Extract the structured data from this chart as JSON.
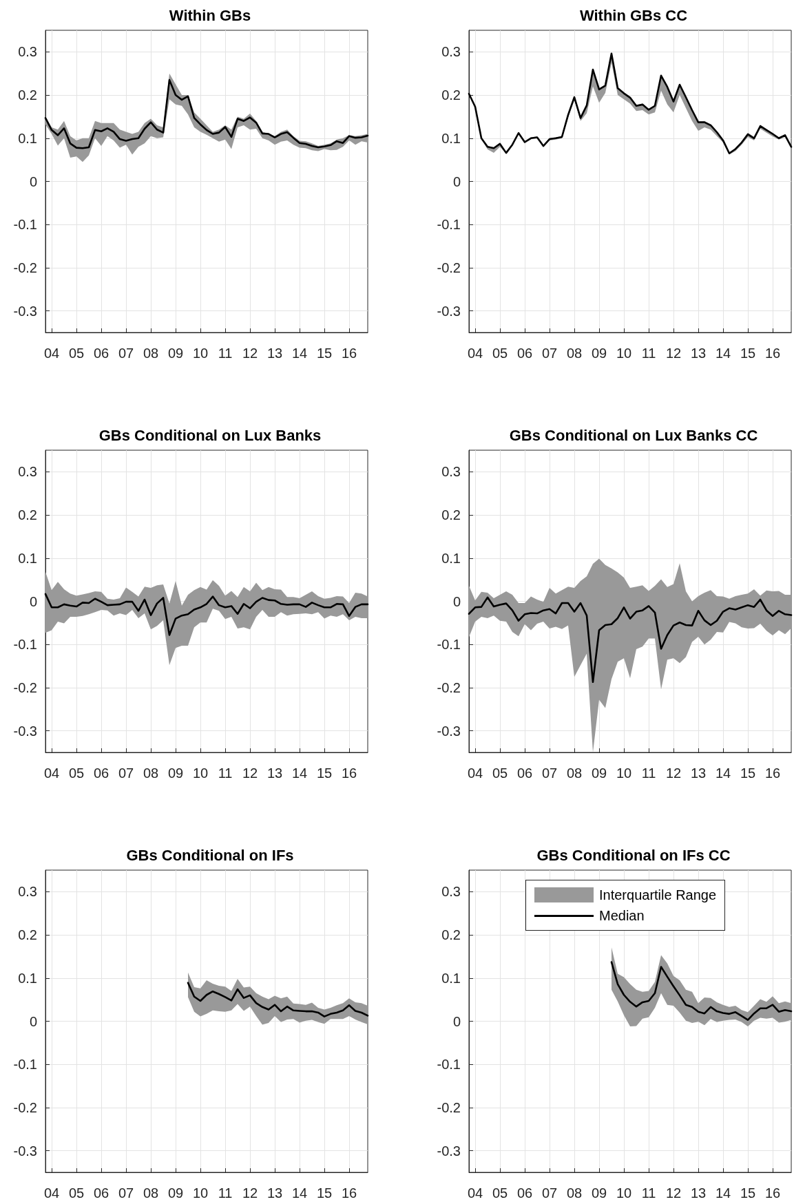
{
  "chart_data": [
    {
      "type": "line",
      "title": "Within GBs",
      "xlim": [
        2003.75,
        2016.75
      ],
      "ylim": [
        -0.35,
        0.35
      ],
      "xticks": [
        {
          "value": 2004,
          "label": "04"
        },
        {
          "value": 2005,
          "label": "05"
        },
        {
          "value": 2006,
          "label": "06"
        },
        {
          "value": 2007,
          "label": "07"
        },
        {
          "value": 2008,
          "label": "08"
        },
        {
          "value": 2009,
          "label": "09"
        },
        {
          "value": 2010,
          "label": "10"
        },
        {
          "value": 2011,
          "label": "11"
        },
        {
          "value": 2012,
          "label": "12"
        },
        {
          "value": 2013,
          "label": "13"
        },
        {
          "value": 2014,
          "label": "14"
        },
        {
          "value": 2015,
          "label": "15"
        },
        {
          "value": 2016,
          "label": "16"
        }
      ],
      "yticks": [
        -0.3,
        -0.2,
        -0.1,
        0,
        0.1,
        0.2,
        0.3
      ],
      "grid": true,
      "legend": false,
      "x": [
        2003.75,
        2004,
        2004.25,
        2004.5,
        2004.75,
        2005,
        2005.25,
        2005.5,
        2005.75,
        2006,
        2006.25,
        2006.5,
        2006.75,
        2007,
        2007.25,
        2007.5,
        2007.75,
        2008,
        2008.25,
        2008.5,
        2008.75,
        2009,
        2009.25,
        2009.5,
        2009.75,
        2010,
        2010.25,
        2010.5,
        2010.75,
        2011,
        2011.25,
        2011.5,
        2011.75,
        2012,
        2012.25,
        2012.5,
        2012.75,
        2013,
        2013.25,
        2013.5,
        2013.75,
        2014,
        2014.25,
        2014.5,
        2014.75,
        2015,
        2015.25,
        2015.5,
        2015.75,
        2016,
        2016.25,
        2016.5,
        2016.75
      ],
      "series": [
        {
          "color": "#000000",
          "values": [
            0.147,
            0.119,
            0.107,
            0.123,
            0.088,
            0.078,
            0.077,
            0.079,
            0.119,
            0.116,
            0.123,
            0.115,
            0.098,
            0.094,
            0.098,
            0.1,
            0.122,
            0.137,
            0.12,
            0.113,
            0.235,
            0.2,
            0.189,
            0.197,
            0.147,
            0.132,
            0.119,
            0.11,
            0.113,
            0.126,
            0.103,
            0.145,
            0.14,
            0.148,
            0.136,
            0.111,
            0.11,
            0.102,
            0.11,
            0.114,
            0.101,
            0.089,
            0.087,
            0.082,
            0.079,
            0.081,
            0.084,
            0.093,
            0.089,
            0.105,
            0.101,
            0.102,
            0.106
          ],
          "upper": [
            0.15,
            0.125,
            0.12,
            0.14,
            0.105,
            0.095,
            0.1,
            0.1,
            0.14,
            0.135,
            0.135,
            0.135,
            0.12,
            0.115,
            0.11,
            0.115,
            0.135,
            0.145,
            0.13,
            0.125,
            0.25,
            0.225,
            0.2,
            0.2,
            0.16,
            0.145,
            0.13,
            0.115,
            0.12,
            0.13,
            0.12,
            0.15,
            0.145,
            0.157,
            0.14,
            0.115,
            0.11,
            0.105,
            0.115,
            0.12,
            0.105,
            0.094,
            0.093,
            0.088,
            0.082,
            0.085,
            0.088,
            0.097,
            0.1,
            0.107,
            0.105,
            0.107,
            0.11
          ],
          "lower": [
            0.132,
            0.11,
            0.083,
            0.1,
            0.055,
            0.058,
            0.045,
            0.06,
            0.1,
            0.082,
            0.105,
            0.095,
            0.078,
            0.085,
            0.062,
            0.08,
            0.088,
            0.105,
            0.1,
            0.102,
            0.19,
            0.178,
            0.175,
            0.155,
            0.125,
            0.115,
            0.108,
            0.1,
            0.092,
            0.097,
            0.075,
            0.125,
            0.13,
            0.12,
            0.122,
            0.1,
            0.095,
            0.085,
            0.092,
            0.095,
            0.085,
            0.078,
            0.077,
            0.072,
            0.07,
            0.075,
            0.072,
            0.073,
            0.08,
            0.095,
            0.085,
            0.093,
            0.09
          ]
        }
      ]
    },
    {
      "type": "line",
      "title": "Within GBs CC",
      "xlim": [
        2003.75,
        2016.75
      ],
      "ylim": [
        -0.35,
        0.35
      ],
      "xticks": [
        {
          "value": 2004,
          "label": "04"
        },
        {
          "value": 2005,
          "label": "05"
        },
        {
          "value": 2006,
          "label": "06"
        },
        {
          "value": 2007,
          "label": "07"
        },
        {
          "value": 2008,
          "label": "08"
        },
        {
          "value": 2009,
          "label": "09"
        },
        {
          "value": 2010,
          "label": "10"
        },
        {
          "value": 2011,
          "label": "11"
        },
        {
          "value": 2012,
          "label": "12"
        },
        {
          "value": 2013,
          "label": "13"
        },
        {
          "value": 2014,
          "label": "14"
        },
        {
          "value": 2015,
          "label": "15"
        },
        {
          "value": 2016,
          "label": "16"
        }
      ],
      "yticks": [
        -0.3,
        -0.2,
        -0.1,
        0,
        0.1,
        0.2,
        0.3
      ],
      "grid": true,
      "legend": false,
      "x": [
        2003.75,
        2004,
        2004.25,
        2004.5,
        2004.75,
        2005,
        2005.25,
        2005.5,
        2005.75,
        2006,
        2006.25,
        2006.5,
        2006.75,
        2007,
        2007.25,
        2007.5,
        2007.75,
        2008,
        2008.25,
        2008.5,
        2008.75,
        2009,
        2009.25,
        2009.5,
        2009.75,
        2010,
        2010.25,
        2010.5,
        2010.75,
        2011,
        2011.25,
        2011.5,
        2011.75,
        2012,
        2012.25,
        2012.5,
        2012.75,
        2013,
        2013.25,
        2013.5,
        2013.75,
        2014,
        2014.25,
        2014.5,
        2014.75,
        2015,
        2015.25,
        2015.5,
        2015.75,
        2016,
        2016.25,
        2016.5,
        2016.75
      ],
      "series": [
        {
          "color": "#000000",
          "values": [
            0.203,
            0.173,
            0.1,
            0.08,
            0.077,
            0.087,
            0.066,
            0.085,
            0.112,
            0.091,
            0.1,
            0.102,
            0.082,
            0.098,
            0.1,
            0.103,
            0.154,
            0.195,
            0.147,
            0.176,
            0.259,
            0.213,
            0.222,
            0.296,
            0.216,
            0.204,
            0.194,
            0.175,
            0.178,
            0.166,
            0.175,
            0.245,
            0.219,
            0.185,
            0.224,
            0.195,
            0.165,
            0.137,
            0.137,
            0.13,
            0.114,
            0.095,
            0.065,
            0.075,
            0.09,
            0.109,
            0.1,
            0.128,
            0.119,
            0.11,
            0.1,
            0.107,
            0.08
          ],
          "upper": [
            0.205,
            0.175,
            0.102,
            0.082,
            0.079,
            0.089,
            0.068,
            0.087,
            0.114,
            0.093,
            0.102,
            0.104,
            0.084,
            0.1,
            0.102,
            0.105,
            0.156,
            0.197,
            0.149,
            0.178,
            0.261,
            0.215,
            0.224,
            0.298,
            0.218,
            0.206,
            0.196,
            0.177,
            0.18,
            0.168,
            0.177,
            0.247,
            0.221,
            0.187,
            0.226,
            0.197,
            0.167,
            0.139,
            0.14,
            0.132,
            0.116,
            0.097,
            0.067,
            0.077,
            0.093,
            0.113,
            0.103,
            0.131,
            0.121,
            0.112,
            0.102,
            0.109,
            0.082
          ],
          "lower": [
            0.2,
            0.17,
            0.098,
            0.074,
            0.066,
            0.08,
            0.064,
            0.083,
            0.11,
            0.089,
            0.098,
            0.1,
            0.08,
            0.095,
            0.097,
            0.1,
            0.148,
            0.188,
            0.14,
            0.158,
            0.22,
            0.182,
            0.205,
            0.275,
            0.2,
            0.19,
            0.18,
            0.163,
            0.165,
            0.155,
            0.16,
            0.21,
            0.178,
            0.16,
            0.2,
            0.17,
            0.14,
            0.117,
            0.125,
            0.12,
            0.105,
            0.09,
            0.062,
            0.07,
            0.085,
            0.103,
            0.095,
            0.122,
            0.113,
            0.104,
            0.097,
            0.103,
            0.077
          ]
        }
      ]
    },
    {
      "type": "line",
      "title": "GBs Conditional on Lux Banks",
      "xlim": [
        2003.75,
        2016.75
      ],
      "ylim": [
        -0.35,
        0.35
      ],
      "xticks": [
        {
          "value": 2004,
          "label": "04"
        },
        {
          "value": 2005,
          "label": "05"
        },
        {
          "value": 2006,
          "label": "06"
        },
        {
          "value": 2007,
          "label": "07"
        },
        {
          "value": 2008,
          "label": "08"
        },
        {
          "value": 2009,
          "label": "09"
        },
        {
          "value": 2010,
          "label": "10"
        },
        {
          "value": 2011,
          "label": "11"
        },
        {
          "value": 2012,
          "label": "12"
        },
        {
          "value": 2013,
          "label": "13"
        },
        {
          "value": 2014,
          "label": "14"
        },
        {
          "value": 2015,
          "label": "15"
        },
        {
          "value": 2016,
          "label": "16"
        }
      ],
      "yticks": [
        -0.3,
        -0.2,
        -0.1,
        0,
        0.1,
        0.2,
        0.3
      ],
      "grid": true,
      "legend": false,
      "x": [
        2003.75,
        2004,
        2004.25,
        2004.5,
        2004.75,
        2005,
        2005.25,
        2005.5,
        2005.75,
        2006,
        2006.25,
        2006.5,
        2006.75,
        2007,
        2007.25,
        2007.5,
        2007.75,
        2008,
        2008.25,
        2008.5,
        2008.75,
        2009,
        2009.25,
        2009.5,
        2009.75,
        2010,
        2010.25,
        2010.5,
        2010.75,
        2011,
        2011.25,
        2011.5,
        2011.75,
        2012,
        2012.25,
        2012.5,
        2012.75,
        2013,
        2013.25,
        2013.5,
        2013.75,
        2014,
        2014.25,
        2014.5,
        2014.75,
        2015,
        2015.25,
        2015.5,
        2015.75,
        2016,
        2016.25,
        2016.5,
        2016.75
      ],
      "series": [
        {
          "color": "#000000",
          "values": [
            0.017,
            -0.014,
            -0.014,
            -0.007,
            -0.01,
            -0.012,
            -0.003,
            -0.004,
            0.006,
            -0.001,
            -0.009,
            -0.008,
            -0.007,
            -0.001,
            -0.001,
            -0.022,
            0.004,
            -0.032,
            -0.005,
            0.008,
            -0.078,
            -0.04,
            -0.033,
            -0.03,
            -0.019,
            -0.014,
            -0.006,
            0.011,
            -0.009,
            -0.014,
            -0.011,
            -0.029,
            -0.006,
            -0.016,
            -0.001,
            0.008,
            0.003,
            0.002,
            -0.006,
            -0.008,
            -0.007,
            -0.007,
            -0.013,
            -0.003,
            -0.009,
            -0.014,
            -0.014,
            -0.006,
            -0.007,
            -0.034,
            -0.013,
            -0.007,
            -0.007
          ],
          "upper": [
            0.068,
            0.026,
            0.045,
            0.028,
            0.018,
            0.013,
            0.016,
            0.019,
            0.023,
            0.022,
            0.006,
            0.004,
            0.007,
            0.032,
            0.022,
            0.011,
            0.034,
            0.031,
            0.037,
            0.039,
            -0.005,
            0.047,
            -0.01,
            0.015,
            0.026,
            0.033,
            0.027,
            0.049,
            0.036,
            0.013,
            0.024,
            0.01,
            0.033,
            0.023,
            0.043,
            0.026,
            0.033,
            0.028,
            0.027,
            0.01,
            0.01,
            0.007,
            0.015,
            0.023,
            0.012,
            0.006,
            0.008,
            0.012,
            0.011,
            -0.004,
            0.02,
            0.018,
            0.011
          ],
          "lower": [
            -0.073,
            -0.067,
            -0.047,
            -0.051,
            -0.036,
            -0.036,
            -0.034,
            -0.03,
            -0.025,
            -0.02,
            -0.021,
            -0.033,
            -0.028,
            -0.032,
            -0.02,
            -0.039,
            -0.028,
            -0.065,
            -0.057,
            -0.044,
            -0.148,
            -0.108,
            -0.103,
            -0.103,
            -0.06,
            -0.049,
            -0.049,
            -0.017,
            -0.022,
            -0.041,
            -0.036,
            -0.063,
            -0.06,
            -0.065,
            -0.036,
            -0.02,
            -0.036,
            -0.036,
            -0.025,
            -0.033,
            -0.03,
            -0.029,
            -0.028,
            -0.03,
            -0.025,
            -0.04,
            -0.033,
            -0.036,
            -0.03,
            -0.044,
            -0.036,
            -0.039,
            -0.039
          ]
        }
      ]
    },
    {
      "type": "line",
      "title": "GBs Conditional on Lux Banks CC",
      "xlim": [
        2003.75,
        2016.75
      ],
      "ylim": [
        -0.35,
        0.35
      ],
      "xticks": [
        {
          "value": 2004,
          "label": "04"
        },
        {
          "value": 2005,
          "label": "05"
        },
        {
          "value": 2006,
          "label": "06"
        },
        {
          "value": 2007,
          "label": "07"
        },
        {
          "value": 2008,
          "label": "08"
        },
        {
          "value": 2009,
          "label": "09"
        },
        {
          "value": 2010,
          "label": "10"
        },
        {
          "value": 2011,
          "label": "11"
        },
        {
          "value": 2012,
          "label": "12"
        },
        {
          "value": 2013,
          "label": "13"
        },
        {
          "value": 2014,
          "label": "14"
        },
        {
          "value": 2015,
          "label": "15"
        },
        {
          "value": 2016,
          "label": "16"
        }
      ],
      "yticks": [
        -0.3,
        -0.2,
        -0.1,
        0,
        0.1,
        0.2,
        0.3
      ],
      "grid": true,
      "legend": false,
      "x": [
        2003.75,
        2004,
        2004.25,
        2004.5,
        2004.75,
        2005,
        2005.25,
        2005.5,
        2005.75,
        2006,
        2006.25,
        2006.5,
        2006.75,
        2007,
        2007.25,
        2007.5,
        2007.75,
        2008,
        2008.25,
        2008.5,
        2008.75,
        2009,
        2009.25,
        2009.5,
        2009.75,
        2010,
        2010.25,
        2010.5,
        2010.75,
        2011,
        2011.25,
        2011.5,
        2011.75,
        2012,
        2012.25,
        2012.5,
        2012.75,
        2013,
        2013.25,
        2013.5,
        2013.75,
        2014,
        2014.25,
        2014.5,
        2014.75,
        2015,
        2015.25,
        2015.5,
        2015.75,
        2016,
        2016.25,
        2016.5,
        2016.75
      ],
      "series": [
        {
          "color": "#000000",
          "values": [
            -0.029,
            -0.014,
            -0.013,
            0.009,
            -0.012,
            -0.008,
            -0.005,
            -0.021,
            -0.045,
            -0.03,
            -0.027,
            -0.028,
            -0.021,
            -0.018,
            -0.028,
            -0.004,
            -0.004,
            -0.024,
            -0.004,
            -0.033,
            -0.187,
            -0.067,
            -0.055,
            -0.053,
            -0.039,
            -0.014,
            -0.04,
            -0.024,
            -0.021,
            -0.011,
            -0.026,
            -0.11,
            -0.078,
            -0.056,
            -0.049,
            -0.055,
            -0.056,
            -0.022,
            -0.044,
            -0.055,
            -0.045,
            -0.024,
            -0.016,
            -0.019,
            -0.014,
            -0.009,
            -0.013,
            0.004,
            -0.021,
            -0.034,
            -0.022,
            -0.03,
            -0.032
          ],
          "upper": [
            0.036,
            0.002,
            0.022,
            0.02,
            0.007,
            0.015,
            0.023,
            0.015,
            -0.004,
            -0.004,
            0.011,
            0.004,
            -0.001,
            0.031,
            0.018,
            0.026,
            0.034,
            0.031,
            0.047,
            0.058,
            0.087,
            0.099,
            0.084,
            0.076,
            0.067,
            0.055,
            0.031,
            0.034,
            0.037,
            0.024,
            0.036,
            0.051,
            0.033,
            0.04,
            0.088,
            0.023,
            0.0,
            0.012,
            0.02,
            0.026,
            0.012,
            0.011,
            0.006,
            0.012,
            0.015,
            0.018,
            0.028,
            0.013,
            0.025,
            0.023,
            0.024,
            0.015,
            0.015
          ],
          "lower": [
            -0.083,
            -0.047,
            -0.036,
            -0.039,
            -0.033,
            -0.045,
            -0.047,
            -0.071,
            -0.081,
            -0.053,
            -0.067,
            -0.052,
            -0.047,
            -0.063,
            -0.059,
            -0.064,
            -0.056,
            -0.175,
            -0.148,
            -0.121,
            -0.35,
            -0.228,
            -0.247,
            -0.18,
            -0.14,
            -0.132,
            -0.178,
            -0.111,
            -0.105,
            -0.086,
            -0.086,
            -0.204,
            -0.135,
            -0.132,
            -0.143,
            -0.129,
            -0.094,
            -0.082,
            -0.1,
            -0.089,
            -0.071,
            -0.072,
            -0.048,
            -0.051,
            -0.06,
            -0.063,
            -0.062,
            -0.052,
            -0.068,
            -0.079,
            -0.067,
            -0.076,
            -0.062
          ]
        }
      ]
    },
    {
      "type": "line",
      "title": "GBs Conditional on IFs",
      "xlim": [
        2003.75,
        2016.75
      ],
      "ylim": [
        -0.35,
        0.35
      ],
      "xticks": [
        {
          "value": 2004,
          "label": "04"
        },
        {
          "value": 2005,
          "label": "05"
        },
        {
          "value": 2006,
          "label": "06"
        },
        {
          "value": 2007,
          "label": "07"
        },
        {
          "value": 2008,
          "label": "08"
        },
        {
          "value": 2009,
          "label": "09"
        },
        {
          "value": 2010,
          "label": "10"
        },
        {
          "value": 2011,
          "label": "11"
        },
        {
          "value": 2012,
          "label": "12"
        },
        {
          "value": 2013,
          "label": "13"
        },
        {
          "value": 2014,
          "label": "14"
        },
        {
          "value": 2015,
          "label": "15"
        },
        {
          "value": 2016,
          "label": "16"
        }
      ],
      "yticks": [
        -0.3,
        -0.2,
        -0.1,
        0,
        0.1,
        0.2,
        0.3
      ],
      "grid": true,
      "legend": false,
      "x": [
        2009.5,
        2009.75,
        2010,
        2010.25,
        2010.5,
        2010.75,
        2011,
        2011.25,
        2011.5,
        2011.75,
        2012,
        2012.25,
        2012.5,
        2012.75,
        2013,
        2013.25,
        2013.5,
        2013.75,
        2014,
        2014.25,
        2014.5,
        2014.75,
        2015,
        2015.25,
        2015.5,
        2015.75,
        2016,
        2016.25,
        2016.5,
        2016.75
      ],
      "series": [
        {
          "color": "#000000",
          "values": [
            0.089,
            0.057,
            0.047,
            0.061,
            0.069,
            0.063,
            0.056,
            0.048,
            0.074,
            0.054,
            0.06,
            0.042,
            0.033,
            0.027,
            0.038,
            0.023,
            0.034,
            0.025,
            0.024,
            0.023,
            0.023,
            0.02,
            0.011,
            0.017,
            0.02,
            0.025,
            0.037,
            0.024,
            0.02,
            0.013
          ],
          "upper": [
            0.113,
            0.079,
            0.076,
            0.095,
            0.087,
            0.082,
            0.08,
            0.07,
            0.098,
            0.078,
            0.08,
            0.065,
            0.057,
            0.051,
            0.059,
            0.053,
            0.057,
            0.041,
            0.04,
            0.038,
            0.043,
            0.031,
            0.027,
            0.031,
            0.037,
            0.042,
            0.053,
            0.044,
            0.042,
            0.036
          ],
          "lower": [
            0.056,
            0.022,
            0.011,
            0.017,
            0.025,
            0.023,
            0.022,
            0.025,
            0.04,
            0.024,
            0.034,
            0.012,
            -0.008,
            -0.004,
            0.012,
            -0.002,
            0.004,
            0.005,
            -0.003,
            0.001,
            0.003,
            -0.002,
            -0.006,
            0.005,
            0.005,
            0.005,
            0.012,
            0.004,
            -0.002,
            -0.007
          ]
        }
      ]
    },
    {
      "type": "line",
      "title": "GBs Conditional on IFs CC",
      "xlim": [
        2003.75,
        2016.75
      ],
      "ylim": [
        -0.35,
        0.35
      ],
      "xticks": [
        {
          "value": 2004,
          "label": "04"
        },
        {
          "value": 2005,
          "label": "05"
        },
        {
          "value": 2006,
          "label": "06"
        },
        {
          "value": 2007,
          "label": "07"
        },
        {
          "value": 2008,
          "label": "08"
        },
        {
          "value": 2009,
          "label": "09"
        },
        {
          "value": 2010,
          "label": "10"
        },
        {
          "value": 2011,
          "label": "11"
        },
        {
          "value": 2012,
          "label": "12"
        },
        {
          "value": 2013,
          "label": "13"
        },
        {
          "value": 2014,
          "label": "14"
        },
        {
          "value": 2015,
          "label": "15"
        },
        {
          "value": 2016,
          "label": "16"
        }
      ],
      "yticks": [
        -0.3,
        -0.2,
        -0.1,
        0,
        0.1,
        0.2,
        0.3
      ],
      "grid": true,
      "legend": "top",
      "annotations": [
        "Interquartile Range"
      ],
      "x": [
        2009.5,
        2009.75,
        2010,
        2010.25,
        2010.5,
        2010.75,
        2011,
        2011.25,
        2011.5,
        2011.75,
        2012,
        2012.25,
        2012.5,
        2012.75,
        2013,
        2013.25,
        2013.5,
        2013.75,
        2014,
        2014.25,
        2014.5,
        2014.75,
        2015,
        2015.25,
        2015.5,
        2015.75,
        2016,
        2016.25,
        2016.5,
        2016.75
      ],
      "series": [
        {
          "name": "Median",
          "color": "#000000",
          "values": [
            0.137,
            0.086,
            0.061,
            0.045,
            0.034,
            0.044,
            0.047,
            0.065,
            0.126,
            0.103,
            0.081,
            0.06,
            0.038,
            0.033,
            0.022,
            0.018,
            0.033,
            0.023,
            0.019,
            0.017,
            0.021,
            0.012,
            0.003,
            0.018,
            0.03,
            0.03,
            0.038,
            0.022,
            0.026,
            0.023
          ],
          "upper": [
            0.171,
            0.11,
            0.102,
            0.086,
            0.073,
            0.068,
            0.07,
            0.091,
            0.153,
            0.134,
            0.105,
            0.095,
            0.073,
            0.068,
            0.042,
            0.055,
            0.054,
            0.044,
            0.038,
            0.033,
            0.036,
            0.026,
            0.021,
            0.036,
            0.051,
            0.045,
            0.058,
            0.042,
            0.046,
            0.042
          ],
          "lower": [
            0.073,
            0.046,
            0.014,
            -0.012,
            -0.011,
            0.006,
            0.009,
            0.031,
            0.065,
            0.038,
            0.036,
            0.02,
            0.001,
            -0.004,
            -0.001,
            -0.009,
            0.005,
            -0.002,
            0.001,
            0.003,
            0.004,
            -0.002,
            -0.012,
            0.001,
            0.008,
            0.006,
            0.008,
            -0.003,
            -0.001,
            0.003
          ]
        }
      ]
    }
  ]
}
